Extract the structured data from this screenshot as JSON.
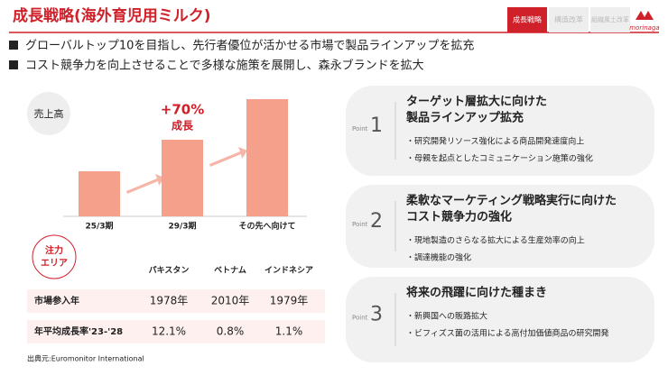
{
  "header": {
    "title": "成長戦略(海外育児用ミルク)",
    "tabs": [
      "成長戦略",
      "構造改革",
      "組織風土改革"
    ],
    "logo": "morinaga"
  },
  "bullets": [
    "グローバルトップ10を目指し、先行者優位が活かせる市場で製品ラインアップを拡充",
    "コスト競争力を向上させることで多様な施策を展開し、森永ブランドを拡大"
  ],
  "chart_data": {
    "type": "bar",
    "label": "売上高",
    "categories": [
      "25/3期",
      "29/3期",
      "その先へ向けて"
    ],
    "values": [
      100,
      170,
      260
    ],
    "ylim": [
      0,
      280
    ],
    "color": "#f4a08a",
    "annotation": {
      "value": "+70%",
      "text": "成長"
    }
  },
  "table": {
    "badge": [
      "注力",
      "エリア"
    ],
    "columns": [
      "パキスタン",
      "ベトナム",
      "インドネシア"
    ],
    "rows": [
      {
        "label": "市場参入年",
        "cells": [
          "1978年",
          "2010年",
          "1979年"
        ]
      },
      {
        "label": "年平均成長率'23-'28",
        "cells": [
          "12.1%",
          "0.8%",
          "1.1%"
        ]
      }
    ]
  },
  "source": "出典元:Euromonitor International",
  "points": [
    {
      "label": "Point",
      "number": "1",
      "title": [
        "ターゲット層拡大に向けた",
        "製品ラインアップ拡充"
      ],
      "items": [
        "・研究開発リソース強化による商品開発速度向上",
        "・母親を起点としたコミュニケーション施策の強化"
      ]
    },
    {
      "label": "Point",
      "number": "2",
      "title": [
        "柔軟なマーケティング戦略実行に向けた",
        "コスト競争力の強化"
      ],
      "items": [
        "・現地製造のさらなる拡大による生産効率の向上",
        "・調達機能の強化"
      ]
    },
    {
      "label": "Point",
      "number": "3",
      "title": [
        "将来の飛躍に向けた種まき"
      ],
      "items": [
        "・新興国への販路拡大",
        "・ビフィズス菌の活用による高付加価値商品の研究開発"
      ]
    }
  ]
}
